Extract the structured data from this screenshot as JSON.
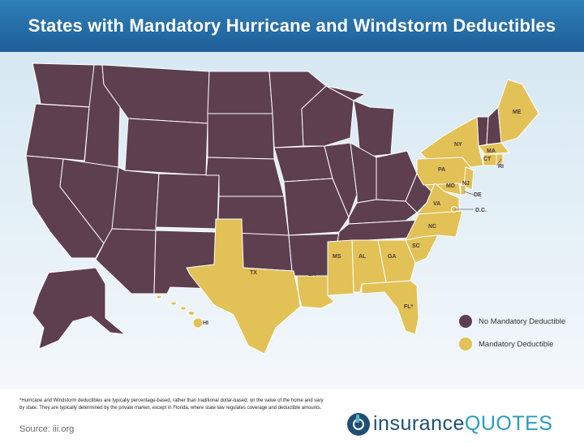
{
  "header": {
    "title": "States with Mandatory Hurricane and Windstorm Deductibles"
  },
  "colors": {
    "no_mandatory": "#5e3f4f",
    "mandatory": "#e2c157",
    "state_border": "#ffffff",
    "header_bg": "#2b77b2"
  },
  "legend": {
    "items": [
      {
        "key": "no_mandatory",
        "label": "No Mandatory Deductible"
      },
      {
        "key": "mandatory",
        "label": "Mandatory Deductible"
      }
    ]
  },
  "states": {
    "mandatory": [
      "ME",
      "NY",
      "MA",
      "CT",
      "RI",
      "PA",
      "NJ",
      "MD",
      "DE",
      "D.C.",
      "VA",
      "NC",
      "SC",
      "GA",
      "AL",
      "MS",
      "LA",
      "TX",
      "FL",
      "HI"
    ],
    "labels": {
      "ME": "ME",
      "NY": "NY",
      "MA": "MA",
      "CT": "CT",
      "RI": "RI",
      "PA": "PA",
      "NJ": "NJ",
      "MD": "MD",
      "DE": "DE",
      "DC": "D.C.",
      "VA": "VA",
      "NC": "NC",
      "SC": "SC",
      "GA": "GA",
      "AL": "AL",
      "MS": "MS",
      "LA": "LA",
      "TX": "TX",
      "FL": "FL*",
      "HI": "HI"
    }
  },
  "footer": {
    "footnote": "*Hurricane and Windstorm deductibles are typically percentage-based, rather than traditional dollar-based, on the value of the home and vary by state. They are typically determined by the private market, except in Florida, where state law regulates coverage and deductible amounts.",
    "source": "Source: iii.org",
    "logo_part1": "insurance",
    "logo_part2": "QUOTES"
  }
}
